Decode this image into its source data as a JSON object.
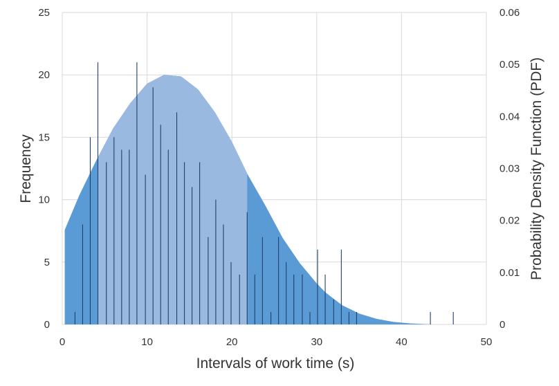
{
  "chart_data": {
    "type": "bar",
    "title": "",
    "xlabel": "Intervals of work time (s)",
    "ylabel": "Frequency",
    "y2label": "Probability Density Function (PDF)",
    "xlim": [
      0,
      50
    ],
    "ylim": [
      0,
      25
    ],
    "y2lim": [
      0,
      0.06
    ],
    "x_ticks": [
      "0",
      "10",
      "20",
      "30",
      "40",
      "50"
    ],
    "y_ticks": [
      "0",
      "5",
      "10",
      "15",
      "20",
      "25"
    ],
    "y2_ticks": [
      "0",
      "0.01",
      "0.02",
      "0.03",
      "0.04",
      "0.05",
      "0.06"
    ],
    "grid": true,
    "colors": {
      "pdf_light": "#9ab9e0",
      "pdf_dark": "#5b9bd5",
      "bars": "#1f3f6a",
      "grid": "#d9d9d9"
    },
    "series": [
      {
        "type": "bar",
        "x": [
          1.5,
          2.4,
          3.3,
          4.2,
          5.2,
          6.1,
          7.0,
          7.9,
          8.8,
          9.8,
          10.7,
          11.6,
          12.5,
          13.5,
          14.4,
          15.3,
          16.2,
          17.2,
          18.1,
          19.0,
          19.9,
          20.9,
          21.8,
          22.7,
          23.6,
          24.6,
          25.5,
          26.4,
          27.3,
          28.3,
          29.2,
          30.1,
          31.0,
          32.0,
          32.9,
          33.8,
          34.7,
          43.4,
          46.1
        ],
        "values": [
          1,
          8,
          15,
          21,
          13,
          15,
          14,
          14,
          21,
          12,
          19,
          16,
          14,
          17,
          13,
          11,
          13,
          7,
          10,
          8,
          5,
          4,
          9,
          4,
          7,
          1,
          7,
          5,
          4,
          4,
          1,
          6,
          4,
          2,
          6,
          1,
          1,
          1,
          1
        ]
      },
      {
        "type": "area",
        "x": [
          0.3,
          2,
          4,
          6,
          8,
          10,
          12,
          14,
          16,
          18,
          20,
          21.8,
          24,
          26,
          28,
          30,
          31,
          33,
          35,
          37,
          39,
          41,
          43,
          43.7
        ],
        "values": [
          0.0182,
          0.0248,
          0.0315,
          0.0377,
          0.0425,
          0.0463,
          0.048,
          0.0477,
          0.0452,
          0.0408,
          0.0351,
          0.029,
          0.0227,
          0.0166,
          0.0118,
          0.0079,
          0.0062,
          0.0037,
          0.0021,
          0.0011,
          0.0005,
          0.0002,
          5e-05,
          0.0
        ]
      }
    ],
    "shaded_region": [
      0.3,
      21.8
    ]
  }
}
